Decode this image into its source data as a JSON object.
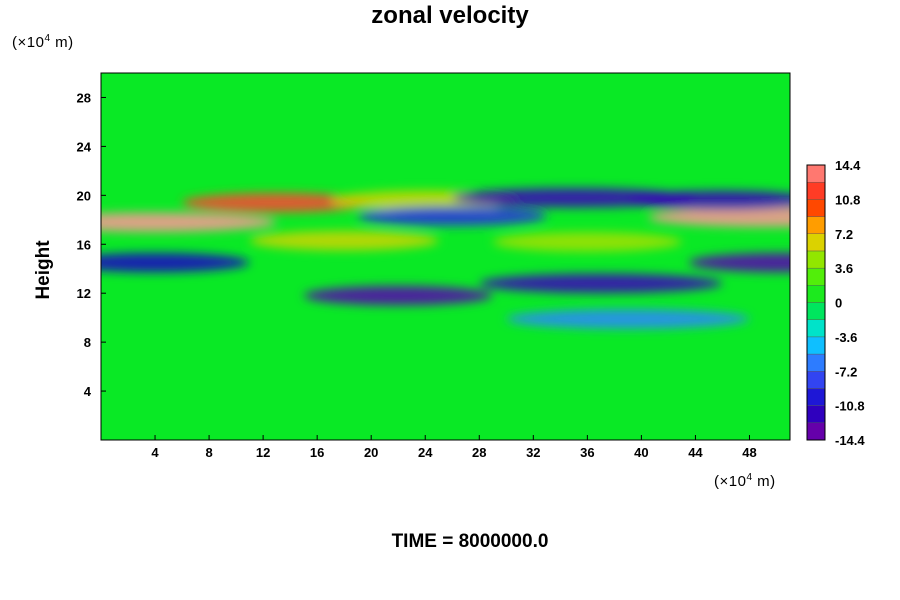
{
  "chart_data": {
    "type": "heatmap",
    "title": "zonal velocity",
    "ylabel": "Height",
    "xlabel": "",
    "x_unit_prefix": "(×10",
    "x_unit_exp": "4",
    "x_unit_suffix": " m)",
    "y_unit_prefix": "(×10",
    "y_unit_exp": "4",
    "y_unit_suffix": " m)",
    "xlim": [
      0,
      51
    ],
    "ylim": [
      0,
      30
    ],
    "xticks": [
      4,
      8,
      12,
      16,
      20,
      24,
      28,
      32,
      36,
      40,
      44,
      48
    ],
    "yticks": [
      4,
      8,
      12,
      16,
      20,
      24,
      28
    ],
    "colorbar": {
      "min": -14.4,
      "max": 14.4,
      "step": 1.8,
      "ticks": [
        "14.4",
        "10.8",
        "7.2",
        "3.6",
        "0",
        "-3.6",
        "-7.2",
        "-10.8",
        "-14.4"
      ]
    },
    "background_value": 0.3,
    "features": [
      {
        "label": "positive core west",
        "x": 4,
        "y": 17.8,
        "value": 15
      },
      {
        "label": "positive jet near 20",
        "x": 13,
        "y": 19.4,
        "value": 12
      },
      {
        "label": "positive jet near 20 mid",
        "x": 24,
        "y": 19.6,
        "value": 6
      },
      {
        "label": "positive core east",
        "x": 49.5,
        "y": 18.2,
        "value": 15
      },
      {
        "label": "positive band 16",
        "x": 18,
        "y": 16.3,
        "value": 6
      },
      {
        "label": "positive band 16 east",
        "x": 36,
        "y": 16.2,
        "value": 5
      },
      {
        "label": "negative core 20 east",
        "x": 35,
        "y": 19.8,
        "value": -12
      },
      {
        "label": "negative core 20 far east",
        "x": 46,
        "y": 19.6,
        "value": -12
      },
      {
        "label": "negative band 18",
        "x": 26,
        "y": 18.3,
        "value": -9
      },
      {
        "label": "negative band 13 east",
        "x": 37,
        "y": 12.8,
        "value": -12
      },
      {
        "label": "negative band 12 mid",
        "x": 22,
        "y": 11.8,
        "value": -13
      },
      {
        "label": "negative band 14 west",
        "x": 4,
        "y": 14.5,
        "value": -11
      },
      {
        "label": "negative band 10 east",
        "x": 39,
        "y": 9.9,
        "value": -6
      },
      {
        "label": "negative east edge",
        "x": 50.5,
        "y": 14.5,
        "value": -13
      }
    ],
    "footer": "TIME = 8000000.0"
  }
}
